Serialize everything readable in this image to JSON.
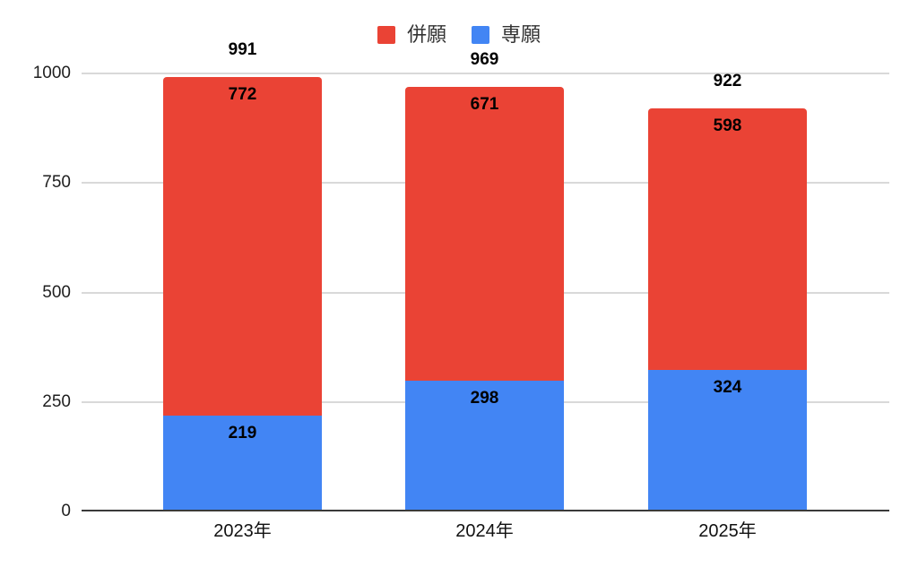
{
  "page": {
    "background": "#ffffff"
  },
  "legend": {
    "position": "top",
    "items": [
      {
        "key": "heigan",
        "label": "併願",
        "color": "#EA4335"
      },
      {
        "key": "sengan",
        "label": "専願",
        "color": "#4285F4"
      }
    ]
  },
  "chart_data": {
    "type": "bar",
    "stacked": true,
    "title": "",
    "xlabel": "",
    "ylabel": "",
    "categories": [
      "2023年",
      "2024年",
      "2025年"
    ],
    "series": [
      {
        "key": "heigan",
        "name": "併願",
        "color": "#EA4335",
        "stack_position": "top",
        "values": [
          772,
          671,
          598
        ]
      },
      {
        "key": "sengan",
        "name": "専願",
        "color": "#4285F4",
        "stack_position": "bottom",
        "values": [
          219,
          298,
          324
        ]
      }
    ],
    "totals": [
      991,
      969,
      922
    ],
    "ylim": [
      0,
      1000
    ],
    "yticks": [
      0,
      250,
      500,
      750,
      1000
    ],
    "grid": true,
    "legend_position": "top",
    "colors": {
      "grid": "#d9d9d9",
      "axis": "#3a3a3a",
      "value_label": "#000000",
      "tick_label": "#1f1f1f",
      "category_label": "#111111",
      "legend_label": "#333333"
    }
  }
}
